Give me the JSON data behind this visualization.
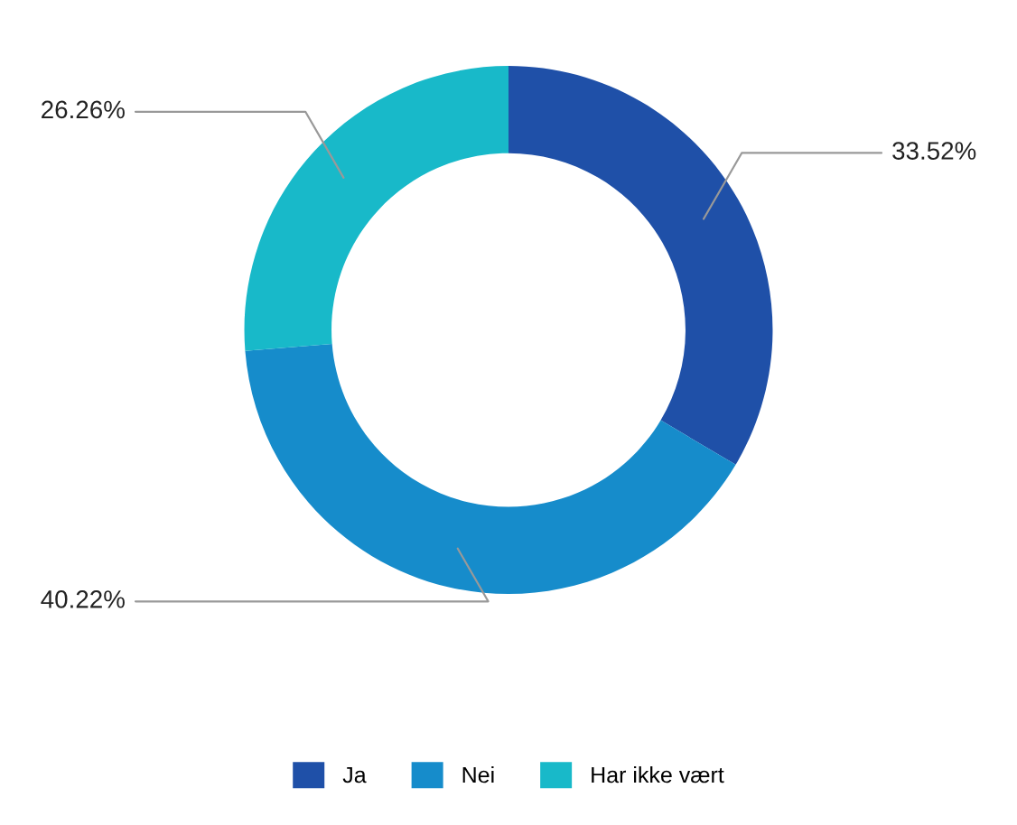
{
  "chart_data": {
    "type": "donut",
    "categories": [
      "Ja",
      "Nei",
      "Har ikke vært"
    ],
    "values": [
      33.52,
      40.22,
      26.26
    ],
    "colors": [
      "#1f50a8",
      "#168ccb",
      "#18b9c9"
    ],
    "value_labels": [
      "33.52%",
      "40.22%",
      "26.26%"
    ],
    "legend": "bottom"
  }
}
